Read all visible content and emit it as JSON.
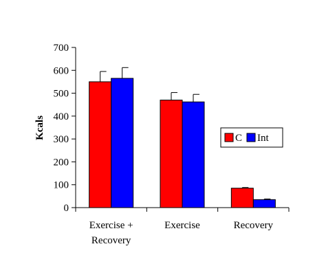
{
  "chart_data": {
    "type": "bar",
    "title": "",
    "xlabel": "",
    "ylabel": "Kcals",
    "ylim": [
      0,
      700
    ],
    "yticks": [
      0,
      100,
      200,
      300,
      400,
      500,
      600,
      700
    ],
    "grid": false,
    "legend_position": "right",
    "categories": [
      [
        "Exercise +",
        "Recovery"
      ],
      [
        "Exercise"
      ],
      [
        "Recovery"
      ]
    ],
    "series": [
      {
        "name": "C",
        "color": "#ff0000",
        "values": [
          550,
          470,
          85
        ],
        "errors": [
          45,
          33,
          3
        ]
      },
      {
        "name": "Int",
        "color": "#0000ff",
        "values": [
          565,
          462,
          35
        ],
        "errors": [
          47,
          33,
          3
        ]
      }
    ]
  }
}
